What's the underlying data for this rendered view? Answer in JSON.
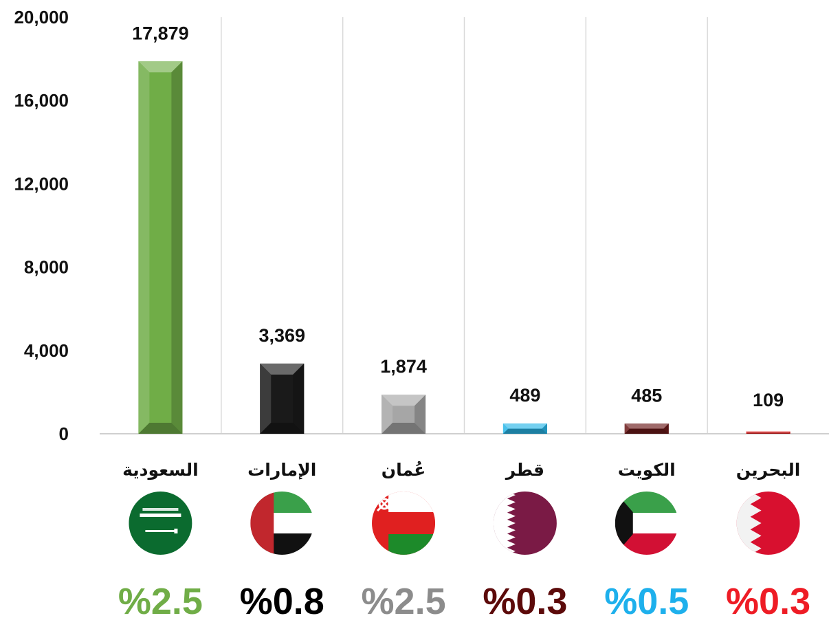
{
  "chart_data": {
    "type": "bar",
    "categories": [
      "السعودية",
      "الإمارات",
      "عُمان",
      "قطر",
      "الكويت",
      "البحرين"
    ],
    "values": [
      17879,
      3369,
      1874,
      489,
      485,
      109
    ],
    "value_labels": [
      "17,879",
      "3,369",
      "1,874",
      "489",
      "485",
      "109"
    ],
    "percent_labels": [
      "%2.5",
      "%0.8",
      "%2.5",
      "%0.3",
      "%0.5",
      "%0.3"
    ],
    "bar_colors": [
      "#70ad47",
      "#1a1a1a",
      "#a6a6a6",
      "#29b6e8",
      "#6b1a1a",
      "#e02020"
    ],
    "percent_colors": [
      "#70ad47",
      "#000000",
      "#8c8c8c",
      "#5c0a0a",
      "#1eb0ec",
      "#ee1c25"
    ],
    "flag_icons": [
      "saudi-flag-icon",
      "uae-flag-icon",
      "oman-flag-icon",
      "qatar-flag-icon",
      "kuwait-flag-icon",
      "bahrain-flag-icon"
    ],
    "y_ticks": [
      "0",
      "4,000",
      "8,000",
      "12,000",
      "16,000",
      "20,000"
    ],
    "ylim": [
      0,
      20000
    ],
    "grid": "vertical",
    "title": "",
    "xlabel": "",
    "ylabel": ""
  }
}
